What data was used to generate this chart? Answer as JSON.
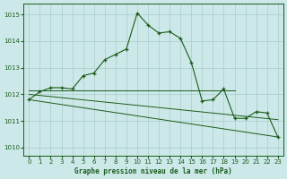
{
  "title": "Graphe pression niveau de la mer (hPa)",
  "background_color": "#cce8e8",
  "grid_color": "#aacccc",
  "line_color": "#1a5c1a",
  "xlim": [
    -0.5,
    23.5
  ],
  "ylim": [
    1009.7,
    1015.4
  ],
  "yticks": [
    1010,
    1011,
    1012,
    1013,
    1014,
    1015
  ],
  "xticks": [
    0,
    1,
    2,
    3,
    4,
    5,
    6,
    7,
    8,
    9,
    10,
    11,
    12,
    13,
    14,
    15,
    16,
    17,
    18,
    19,
    20,
    21,
    22,
    23
  ],
  "main_x": [
    0,
    1,
    2,
    3,
    4,
    5,
    6,
    7,
    8,
    9,
    10,
    11,
    12,
    13,
    14,
    15,
    16,
    17,
    18,
    19,
    20,
    21,
    22,
    23
  ],
  "main_y": [
    1011.8,
    1012.1,
    1012.25,
    1012.25,
    1012.2,
    1012.7,
    1012.8,
    1013.3,
    1013.5,
    1013.7,
    1015.05,
    1014.6,
    1014.3,
    1014.35,
    1014.1,
    1013.2,
    1011.75,
    1011.8,
    1012.2,
    1011.1,
    1011.1,
    1011.35,
    1011.3,
    1010.4
  ],
  "line2_x": [
    0,
    19
  ],
  "line2_y": [
    1012.15,
    1012.15
  ],
  "line3_x": [
    0,
    23
  ],
  "line3_y": [
    1012.0,
    1011.05
  ],
  "line4_x": [
    0,
    23
  ],
  "line4_y": [
    1011.8,
    1010.4
  ]
}
